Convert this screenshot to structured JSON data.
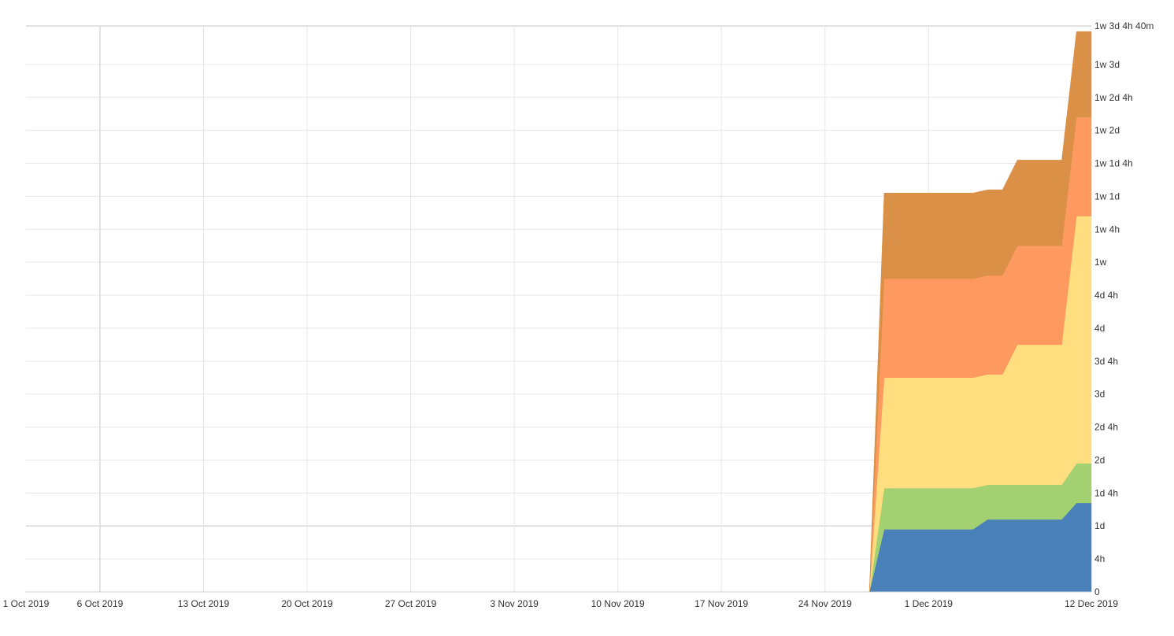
{
  "chart_data": {
    "type": "area",
    "stacked": true,
    "title": "",
    "xlabel": "",
    "ylabel": "",
    "y_unit": "hours (1d = 8h, 1w = 5d)",
    "ylim": [
      0,
      68.67
    ],
    "x_axis": {
      "range": [
        "2019-10-01",
        "2019-12-12"
      ],
      "tick_labels": [
        {
          "date": "2019-10-01",
          "label": "1 Oct 2019"
        },
        {
          "date": "2019-10-06",
          "label": "6 Oct 2019"
        },
        {
          "date": "2019-10-13",
          "label": "13 Oct 2019"
        },
        {
          "date": "2019-10-20",
          "label": "20 Oct 2019"
        },
        {
          "date": "2019-10-27",
          "label": "27 Oct 2019"
        },
        {
          "date": "2019-11-03",
          "label": "3 Nov 2019"
        },
        {
          "date": "2019-11-10",
          "label": "10 Nov 2019"
        },
        {
          "date": "2019-11-17",
          "label": "17 Nov 2019"
        },
        {
          "date": "2019-11-24",
          "label": "24 Nov 2019"
        },
        {
          "date": "2019-12-01",
          "label": "1 Dec 2019"
        },
        {
          "date": "2019-12-12",
          "label": "12 Dec 2019"
        }
      ]
    },
    "y_axis": {
      "position": "right",
      "tick_labels": [
        {
          "value": 0,
          "label": "0"
        },
        {
          "value": 4,
          "label": "4h"
        },
        {
          "value": 8,
          "label": "1d"
        },
        {
          "value": 12,
          "label": "1d 4h"
        },
        {
          "value": 16,
          "label": "2d"
        },
        {
          "value": 20,
          "label": "2d 4h"
        },
        {
          "value": 24,
          "label": "3d"
        },
        {
          "value": 28,
          "label": "3d 4h"
        },
        {
          "value": 32,
          "label": "4d"
        },
        {
          "value": 36,
          "label": "4d 4h"
        },
        {
          "value": 40,
          "label": "1w"
        },
        {
          "value": 44,
          "label": "1w 4h"
        },
        {
          "value": 48,
          "label": "1w 1d"
        },
        {
          "value": 52,
          "label": "1w 1d 4h"
        },
        {
          "value": 56,
          "label": "1w 2d"
        },
        {
          "value": 60,
          "label": "1w 2d 4h"
        },
        {
          "value": 64,
          "label": "1w 3d"
        },
        {
          "value": 68.67,
          "label": "1w 3d 4h 40m"
        }
      ]
    },
    "grid": true,
    "legend": "none",
    "x": [
      "2019-11-27",
      "2019-11-28",
      "2019-11-29",
      "2019-11-30",
      "2019-12-01",
      "2019-12-02",
      "2019-12-03",
      "2019-12-04",
      "2019-12-05",
      "2019-12-06",
      "2019-12-07",
      "2019-12-08",
      "2019-12-09",
      "2019-12-10",
      "2019-12-11",
      "2019-12-12"
    ],
    "series": [
      {
        "color": "#4a80ba",
        "values": [
          0,
          7.6,
          7.6,
          7.6,
          7.6,
          7.6,
          7.6,
          7.6,
          8.8,
          8.8,
          8.8,
          8.8,
          8.8,
          8.8,
          10.8,
          10.8
        ]
      },
      {
        "color": "#a3d070",
        "values": [
          0,
          5.0,
          5.0,
          5.0,
          5.0,
          5.0,
          5.0,
          5.0,
          4.2,
          4.2,
          4.2,
          4.2,
          4.2,
          4.2,
          4.8,
          4.8
        ]
      },
      {
        "color": "#fede7e",
        "values": [
          0,
          13.4,
          13.4,
          13.4,
          13.4,
          13.4,
          13.4,
          13.4,
          13.4,
          13.4,
          17.0,
          17.0,
          17.0,
          17.0,
          30.0,
          30.0
        ]
      },
      {
        "color": "#fe9a60",
        "values": [
          0,
          12.0,
          12.0,
          12.0,
          12.0,
          12.0,
          12.0,
          12.0,
          12.0,
          12.0,
          12.0,
          12.0,
          12.0,
          12.0,
          12.0,
          12.0
        ]
      },
      {
        "color": "#da9147",
        "values": [
          0,
          10.4,
          10.4,
          10.4,
          10.4,
          10.4,
          10.4,
          10.4,
          10.4,
          10.4,
          10.4,
          10.4,
          10.4,
          10.4,
          10.4,
          10.4
        ]
      }
    ]
  }
}
